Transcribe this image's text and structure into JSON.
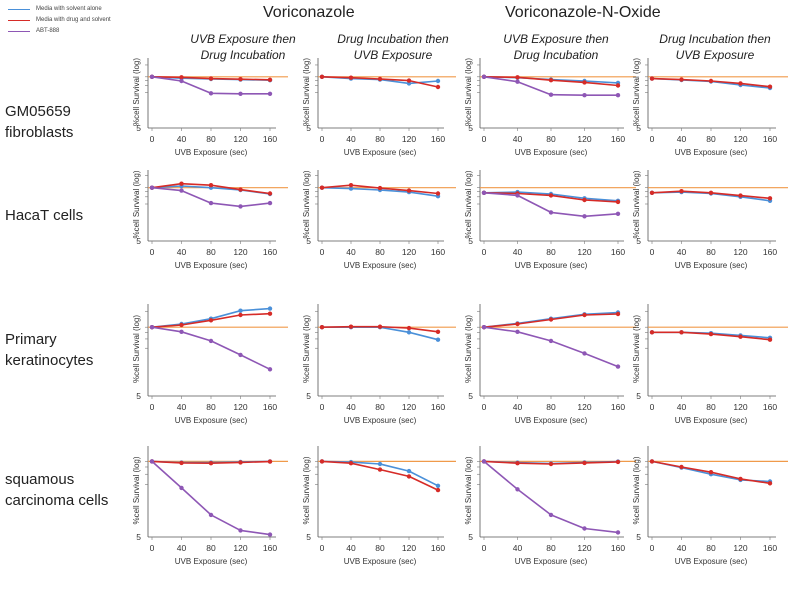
{
  "legend": [
    {
      "label": "Media with solvent alone",
      "color": "#4a90d9"
    },
    {
      "label": "Media with drug and solvent",
      "color": "#d62b27"
    },
    {
      "label": "ABT-888",
      "color": "#8e57b5"
    }
  ],
  "reference_line_color": "#f09a4a",
  "drug_headers": [
    "Voriconazole",
    "Voriconazole-N-Oxide"
  ],
  "column_headers": [
    [
      "UVB Exposure then",
      "Drug Incubation"
    ],
    [
      "Drug Incubation then",
      "UVB Exposure"
    ],
    [
      "UVB Exposure then",
      "Drug Incubation"
    ],
    [
      "Drug Incubation then",
      "UVB Exposure"
    ]
  ],
  "row_labels": [
    [
      "GM05659",
      "fibroblasts"
    ],
    [
      "HacaT cells"
    ],
    [
      "Primary",
      "keratinocytes"
    ],
    [
      "squamous",
      "carcinoma cells"
    ]
  ],
  "chart_data": {
    "type": "line",
    "grid": false,
    "x": [
      0,
      40,
      80,
      120,
      160
    ],
    "xlabel": "UVB Exposure (sec)",
    "ylabel": "%cell Survival (log)",
    "ytick_label": "5",
    "panels": [
      {
        "row": 0,
        "col": 0,
        "series": [
          {
            "color": "#4a90d9",
            "values": [
              100,
              92,
              88,
              85,
              82
            ]
          },
          {
            "color": "#d62b27",
            "values": [
              100,
              97,
              90,
              87,
              84
            ]
          },
          {
            "color": "#8e57b5",
            "values": [
              100,
              78,
              38,
              37,
              37
            ]
          }
        ]
      },
      {
        "row": 0,
        "col": 1,
        "series": [
          {
            "color": "#4a90d9",
            "values": [
              100,
              90,
              85,
              68,
              78
            ]
          },
          {
            "color": "#d62b27",
            "values": [
              100,
              95,
              88,
              80,
              55
            ]
          }
        ]
      },
      {
        "row": 0,
        "col": 2,
        "series": [
          {
            "color": "#4a90d9",
            "values": [
              100,
              95,
              85,
              78,
              70
            ]
          },
          {
            "color": "#d62b27",
            "values": [
              100,
              97,
              82,
              72,
              60
            ]
          },
          {
            "color": "#8e57b5",
            "values": [
              100,
              75,
              35,
              34,
              34
            ]
          }
        ]
      },
      {
        "row": 0,
        "col": 3,
        "series": [
          {
            "color": "#4a90d9",
            "values": [
              90,
              83,
              76,
              62,
              52
            ]
          },
          {
            "color": "#d62b27",
            "values": [
              90,
              85,
              78,
              68,
              56
            ]
          }
        ]
      },
      {
        "row": 1,
        "col": 0,
        "series": [
          {
            "color": "#4a90d9",
            "values": [
              100,
              110,
              100,
              88,
              70
            ]
          },
          {
            "color": "#d62b27",
            "values": [
              100,
              125,
              115,
              90,
              72
            ]
          },
          {
            "color": "#8e57b5",
            "values": [
              100,
              85,
              42,
              35,
              42
            ]
          }
        ]
      },
      {
        "row": 1,
        "col": 1,
        "series": [
          {
            "color": "#4a90d9",
            "values": [
              100,
              95,
              88,
              78,
              62
            ]
          },
          {
            "color": "#d62b27",
            "values": [
              100,
              115,
              98,
              85,
              72
            ]
          }
        ]
      },
      {
        "row": 1,
        "col": 2,
        "series": [
          {
            "color": "#4a90d9",
            "values": [
              75,
              78,
              70,
              55,
              48
            ]
          },
          {
            "color": "#d62b27",
            "values": [
              75,
              72,
              65,
              50,
              45
            ]
          },
          {
            "color": "#8e57b5",
            "values": [
              75,
              65,
              25,
              20,
              23
            ]
          }
        ]
      },
      {
        "row": 1,
        "col": 3,
        "series": [
          {
            "color": "#4a90d9",
            "values": [
              75,
              78,
              72,
              60,
              48
            ]
          },
          {
            "color": "#d62b27",
            "values": [
              75,
              82,
              75,
              64,
              55
            ]
          }
        ]
      },
      {
        "row": 2,
        "col": 0,
        "series": [
          {
            "color": "#4a90d9",
            "values": [
              100,
              115,
              145,
              205,
              225
            ]
          },
          {
            "color": "#d62b27",
            "values": [
              100,
              110,
              135,
              170,
              180
            ]
          },
          {
            "color": "#8e57b5",
            "values": [
              100,
              82,
              55,
              30,
              16
            ]
          }
        ]
      },
      {
        "row": 2,
        "col": 1,
        "series": [
          {
            "color": "#4a90d9",
            "values": [
              100,
              100,
              100,
              80,
              58
            ]
          },
          {
            "color": "#d62b27",
            "values": [
              100,
              102,
              102,
              96,
              82
            ]
          }
        ]
      },
      {
        "row": 2,
        "col": 2,
        "series": [
          {
            "color": "#4a90d9",
            "values": [
              100,
              118,
              145,
              175,
              190
            ]
          },
          {
            "color": "#d62b27",
            "values": [
              100,
              115,
              140,
              170,
              178
            ]
          },
          {
            "color": "#8e57b5",
            "values": [
              100,
              82,
              55,
              32,
              18
            ]
          }
        ]
      },
      {
        "row": 2,
        "col": 3,
        "series": [
          {
            "color": "#4a90d9",
            "values": [
              80,
              80,
              77,
              70,
              63
            ]
          },
          {
            "color": "#d62b27",
            "values": [
              80,
              80,
              74,
              66,
              58
            ]
          }
        ]
      },
      {
        "row": 3,
        "col": 0,
        "series": [
          {
            "color": "#4a90d9",
            "values": [
              100,
              95,
              95,
              98,
              100
            ]
          },
          {
            "color": "#d62b27",
            "values": [
              100,
              94,
              93,
              96,
              99
            ]
          },
          {
            "color": "#8e57b5",
            "values": [
              100,
              35,
              12,
              6.5,
              5.5
            ]
          }
        ]
      },
      {
        "row": 3,
        "col": 1,
        "series": [
          {
            "color": "#4a90d9",
            "values": [
              100,
              97,
              90,
              68,
              38
            ]
          },
          {
            "color": "#d62b27",
            "values": [
              100,
              93,
              72,
              55,
              32
            ]
          }
        ]
      },
      {
        "row": 3,
        "col": 2,
        "series": [
          {
            "color": "#4a90d9",
            "values": [
              100,
              95,
              92,
              96,
              99
            ]
          },
          {
            "color": "#d62b27",
            "values": [
              100,
              93,
              90,
              94,
              98
            ]
          },
          {
            "color": "#8e57b5",
            "values": [
              100,
              33,
              12,
              7,
              6
            ]
          }
        ]
      },
      {
        "row": 3,
        "col": 3,
        "series": [
          {
            "color": "#4a90d9",
            "values": [
              100,
              78,
              60,
              48,
              45
            ]
          },
          {
            "color": "#d62b27",
            "values": [
              100,
              80,
              65,
              50,
              42
            ]
          }
        ]
      }
    ]
  }
}
